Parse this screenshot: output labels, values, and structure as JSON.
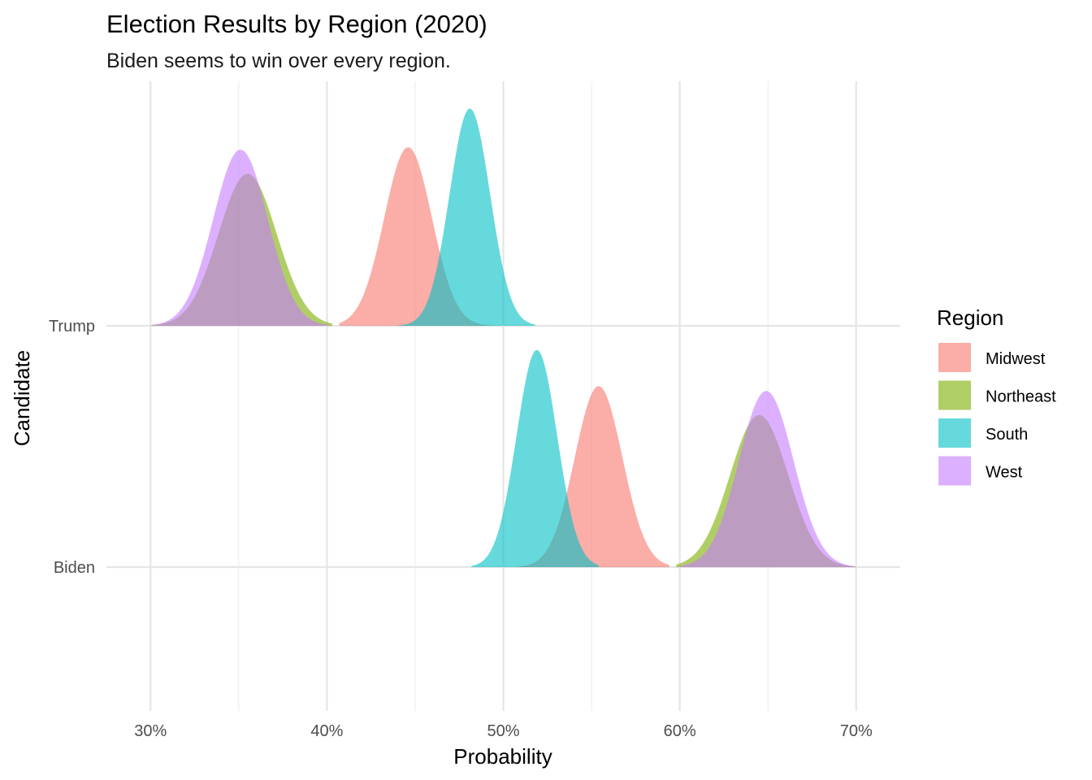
{
  "chart_data": {
    "type": "ridgeline",
    "title": "Election Results by Region (2020)",
    "subtitle": "Biden seems to win over every region.",
    "xlabel": "Probability",
    "ylabel": "Candidate",
    "x_tick_labels": [
      "30%",
      "40%",
      "50%",
      "60%",
      "70%"
    ],
    "x_ticks": [
      0.3,
      0.4,
      0.5,
      0.6,
      0.7
    ],
    "xlim": [
      0.275,
      0.725
    ],
    "categories": [
      "Trump",
      "Biden"
    ],
    "legend": {
      "title": "Region",
      "position": "right"
    },
    "grid": true,
    "series": [
      {
        "name": "Midwest",
        "color": "#F8766D",
        "distributions": [
          {
            "candidate": "Trump",
            "mean": 0.446,
            "sd": 0.0135,
            "peak": 0.74,
            "range": [
              0.407,
              0.495
            ]
          },
          {
            "candidate": "Biden",
            "mean": 0.554,
            "sd": 0.0135,
            "peak": 0.75,
            "range": [
              0.508,
              0.594
            ]
          }
        ]
      },
      {
        "name": "Northeast",
        "color": "#7CAE00",
        "distributions": [
          {
            "candidate": "Trump",
            "mean": 0.355,
            "sd": 0.0165,
            "peak": 0.63,
            "range": [
              0.3,
              0.403
            ]
          },
          {
            "candidate": "Biden",
            "mean": 0.645,
            "sd": 0.0165,
            "peak": 0.63,
            "range": [
              0.598,
              0.7
            ]
          }
        ]
      },
      {
        "name": "South",
        "color": "#00BFC4",
        "distributions": [
          {
            "candidate": "Trump",
            "mean": 0.481,
            "sd": 0.0115,
            "peak": 0.9,
            "range": [
              0.44,
              0.518
            ]
          },
          {
            "candidate": "Biden",
            "mean": 0.519,
            "sd": 0.0115,
            "peak": 0.9,
            "range": [
              0.482,
              0.554
            ]
          }
        ]
      },
      {
        "name": "West",
        "color": "#C77CFF",
        "distributions": [
          {
            "candidate": "Trump",
            "mean": 0.351,
            "sd": 0.0155,
            "peak": 0.73,
            "range": [
              0.301,
              0.401
            ]
          },
          {
            "candidate": "Biden",
            "mean": 0.649,
            "sd": 0.0155,
            "peak": 0.73,
            "range": [
              0.6,
              0.699
            ]
          }
        ]
      }
    ]
  }
}
